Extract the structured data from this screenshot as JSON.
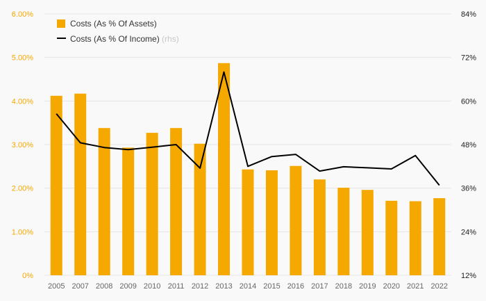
{
  "chart_data": {
    "type": "bar",
    "categories": [
      "2005",
      "2007",
      "2008",
      "2009",
      "2010",
      "2011",
      "2012",
      "2013",
      "2014",
      "2015",
      "2016",
      "2017",
      "2018",
      "2019",
      "2020",
      "2021",
      "2022"
    ],
    "series": [
      {
        "name": "Costs (As % Of Assets)",
        "type": "bar",
        "axis": "left",
        "values": [
          4.12,
          4.17,
          3.38,
          2.93,
          3.27,
          3.38,
          3.02,
          4.87,
          2.43,
          2.41,
          2.51,
          2.2,
          2.01,
          1.96,
          1.71,
          1.7,
          1.77
        ]
      },
      {
        "name": "Costs (As % Of Income)",
        "legend_suffix": "(rhs)",
        "type": "line",
        "axis": "right",
        "values": [
          56.5,
          48.5,
          47.2,
          46.6,
          47.3,
          48.0,
          41.5,
          68.0,
          42.0,
          44.7,
          45.3,
          40.7,
          41.9,
          41.6,
          41.3,
          45.0,
          36.8
        ]
      }
    ],
    "left_axis": {
      "min": 0,
      "max": 6,
      "ticks": [
        0,
        1,
        2,
        3,
        4,
        5,
        6
      ],
      "tick_labels": [
        "0%",
        "1.00%",
        "2.00%",
        "3.00%",
        "4.00%",
        "5.00%",
        "6.00%"
      ]
    },
    "right_axis": {
      "min": 12,
      "max": 84,
      "ticks": [
        12,
        24,
        36,
        48,
        60,
        72,
        84
      ],
      "tick_labels": [
        "12%",
        "24%",
        "36%",
        "48%",
        "60%",
        "72%",
        "84%"
      ]
    },
    "legend_position": "top-left",
    "grid": true,
    "colors": {
      "bar": "#f5a800",
      "line": "#000000",
      "grid": "#e6e6e6",
      "left_ticks": "#f5a800",
      "right_ticks": "#222222",
      "x_ticks": "#666666",
      "legend_suffix": "#c8c8c8"
    }
  }
}
